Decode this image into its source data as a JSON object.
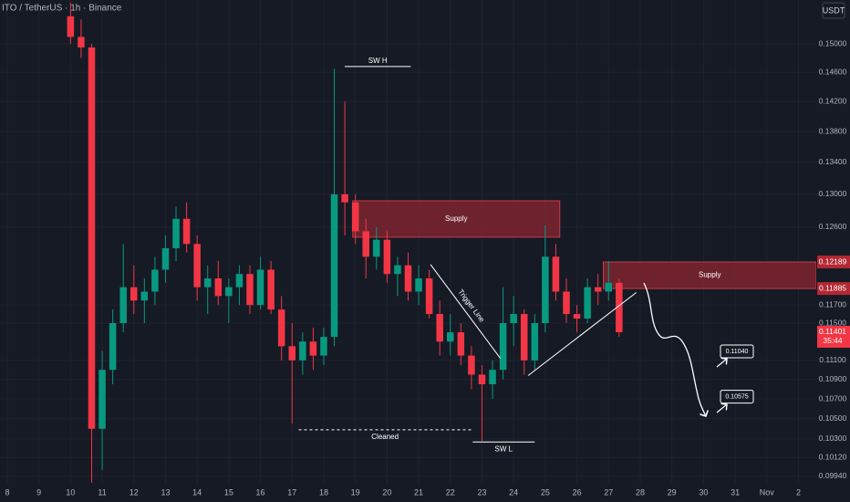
{
  "chart_data": {
    "type": "candlestick",
    "title": "ITO / TetherUS · 1h · Binance",
    "currency": "USDT",
    "x": [
      48,
      56,
      64,
      72,
      80,
      88,
      96,
      104,
      112,
      120,
      128,
      136,
      144,
      152,
      160,
      168,
      176,
      184,
      192,
      200,
      208,
      216,
      224,
      232,
      240,
      248,
      256,
      264,
      272,
      280,
      288,
      296,
      304,
      312,
      320,
      328,
      336,
      344,
      352,
      360,
      368,
      376,
      384,
      392,
      400,
      408,
      416,
      424,
      432,
      440,
      448,
      456,
      464
    ],
    "open": [
      0.154,
      0.151,
      0.1495,
      0.104,
      0.11,
      0.115,
      0.119,
      0.1175,
      0.1185,
      0.121,
      0.1235,
      0.127,
      0.124,
      0.119,
      0.12,
      0.118,
      0.119,
      0.1205,
      0.117,
      0.121,
      0.1165,
      0.1125,
      0.111,
      0.113,
      0.1115,
      0.1135,
      0.13,
      0.129,
      0.1255,
      0.1225,
      0.1245,
      0.1205,
      0.1215,
      0.1185,
      0.12,
      0.116,
      0.113,
      0.114,
      0.1115,
      0.1095,
      0.1085,
      0.11,
      0.115,
      0.116,
      0.111,
      0.115,
      0.1225,
      0.1185,
      0.116,
      0.1155,
      0.119,
      0.1185,
      0.1195
    ],
    "high": [
      0.156,
      0.1535,
      0.15,
      0.112,
      0.1165,
      0.124,
      0.1215,
      0.12,
      0.1225,
      0.125,
      0.1285,
      0.129,
      0.125,
      0.1215,
      0.122,
      0.12,
      0.1215,
      0.1215,
      0.1225,
      0.122,
      0.118,
      0.115,
      0.114,
      0.1145,
      0.1145,
      0.1465,
      0.142,
      0.13,
      0.127,
      0.126,
      0.1255,
      0.1225,
      0.123,
      0.1215,
      0.121,
      0.1175,
      0.116,
      0.115,
      0.1125,
      0.1105,
      0.111,
      0.119,
      0.118,
      0.1165,
      0.116,
      0.1262,
      0.124,
      0.12,
      0.117,
      0.12,
      0.1205,
      0.122,
      0.12
    ],
    "low": [
      0.15,
      0.148,
      0.0988,
      0.1,
      0.1085,
      0.114,
      0.116,
      0.115,
      0.117,
      0.1195,
      0.122,
      0.123,
      0.1175,
      0.116,
      0.117,
      0.115,
      0.117,
      0.116,
      0.1165,
      0.116,
      0.111,
      0.1045,
      0.1095,
      0.11,
      0.1105,
      0.1125,
      0.125,
      0.124,
      0.12,
      0.121,
      0.1195,
      0.118,
      0.1175,
      0.117,
      0.1155,
      0.1115,
      0.1115,
      0.1105,
      0.108,
      0.1028,
      0.107,
      0.109,
      0.1125,
      0.1095,
      0.11,
      0.114,
      0.1175,
      0.115,
      0.114,
      0.115,
      0.117,
      0.1175,
      0.1135
    ],
    "close": [
      0.151,
      0.1495,
      0.104,
      0.11,
      0.115,
      0.119,
      0.1175,
      0.1185,
      0.121,
      0.1235,
      0.127,
      0.124,
      0.119,
      0.12,
      0.118,
      0.119,
      0.1205,
      0.117,
      0.121,
      0.1165,
      0.1125,
      0.111,
      0.113,
      0.1115,
      0.1135,
      0.13,
      0.129,
      0.1255,
      0.1225,
      0.1245,
      0.1205,
      0.1215,
      0.1185,
      0.12,
      0.116,
      0.113,
      0.114,
      0.1115,
      0.1095,
      0.1085,
      0.11,
      0.115,
      0.116,
      0.111,
      0.115,
      0.1225,
      0.1185,
      0.116,
      0.1155,
      0.119,
      0.1185,
      0.1195,
      0.11401
    ],
    "up_color": "#089981",
    "down_color": "#f23645",
    "xlim": [
      -5.5,
      613.5
    ],
    "xticks": [
      {
        "value": 0,
        "label": "8"
      },
      {
        "value": 24,
        "label": "9"
      },
      {
        "value": 48,
        "label": "10"
      },
      {
        "value": 72,
        "label": "11"
      },
      {
        "value": 96,
        "label": "12"
      },
      {
        "value": 120,
        "label": "13"
      },
      {
        "value": 144,
        "label": "14"
      },
      {
        "value": 168,
        "label": "15"
      },
      {
        "value": 192,
        "label": "16"
      },
      {
        "value": 216,
        "label": "17"
      },
      {
        "value": 240,
        "label": "18"
      },
      {
        "value": 264,
        "label": "19"
      },
      {
        "value": 288,
        "label": "20"
      },
      {
        "value": 312,
        "label": "21"
      },
      {
        "value": 336,
        "label": "22"
      },
      {
        "value": 360,
        "label": "23"
      },
      {
        "value": 384,
        "label": "24"
      },
      {
        "value": 408,
        "label": "25"
      },
      {
        "value": 432,
        "label": "26"
      },
      {
        "value": 456,
        "label": "27"
      },
      {
        "value": 480,
        "label": "28"
      },
      {
        "value": 504,
        "label": "29"
      },
      {
        "value": 528,
        "label": "30"
      },
      {
        "value": 552,
        "label": "31"
      },
      {
        "value": 576,
        "label": "Nov"
      },
      {
        "value": 600,
        "label": "2"
      }
    ],
    "log_scale": true,
    "ylim": [
      0.0987,
      0.1564
    ],
    "yticks": [
      {
        "value": 0.15,
        "label": "0.15000"
      },
      {
        "value": 0.146,
        "label": "0.14600"
      },
      {
        "value": 0.142,
        "label": "0.14200"
      },
      {
        "value": 0.138,
        "label": "0.13800"
      },
      {
        "value": 0.134,
        "label": "0.13400"
      },
      {
        "value": 0.13,
        "label": "0.13000"
      },
      {
        "value": 0.126,
        "label": "0.12600"
      },
      {
        "value": 0.117,
        "label": "0.11700"
      },
      {
        "value": 0.115,
        "label": "0.11500"
      },
      {
        "value": 0.111,
        "label": "0.11100"
      },
      {
        "value": 0.109,
        "label": "0.10900"
      },
      {
        "value": 0.107,
        "label": "0.10700"
      },
      {
        "value": 0.105,
        "label": "0.10500"
      },
      {
        "value": 0.103,
        "label": "0.10300"
      },
      {
        "value": 0.1012,
        "label": "0.10120"
      },
      {
        "value": 0.0994,
        "label": "0.09940"
      }
    ],
    "grid": true,
    "price_markers": [
      {
        "value": 0.12189,
        "label": "0.12189",
        "color": "#b22833"
      },
      {
        "value": 0.11885,
        "label": "0.11885",
        "color": "#b22833"
      },
      {
        "value": 0.11401,
        "label": "0.11401",
        "sublabel": "35:44",
        "color": "#f23645"
      }
    ],
    "zones": [
      {
        "label": "Supply",
        "x": [
          262,
          419
        ],
        "ylim": [
          0.1248,
          0.1292
        ],
        "color": "#8b2530"
      },
      {
        "label": "Supply",
        "x": [
          452,
          613.5
        ],
        "ylim": [
          0.11885,
          0.12189
        ],
        "color": "#8b2530"
      }
    ],
    "levels": [
      {
        "label": "SW H",
        "price": 0.1468,
        "x": [
          256,
          306
        ],
        "style": "solid",
        "label_side": "above"
      },
      {
        "label": "Cleaned",
        "price": 0.1039,
        "x": [
          221,
          352
        ],
        "style": "dashed",
        "label_side": "below"
      },
      {
        "label": "SW L",
        "price": 0.1027,
        "x": [
          353,
          400
        ],
        "style": "solid",
        "label_side": "below"
      }
    ],
    "lines": [
      {
        "label": "Trigger Line",
        "x": [
          321,
          374
        ],
        "y": [
          0.1216,
          0.1112
        ]
      },
      {
        "x": [
          395,
          477
        ],
        "y": [
          0.1094,
          0.1184
        ]
      }
    ],
    "targets": [
      {
        "value": 0.1104,
        "label": "0.11040"
      },
      {
        "value": 0.10575,
        "label": "0.10575"
      }
    ]
  }
}
